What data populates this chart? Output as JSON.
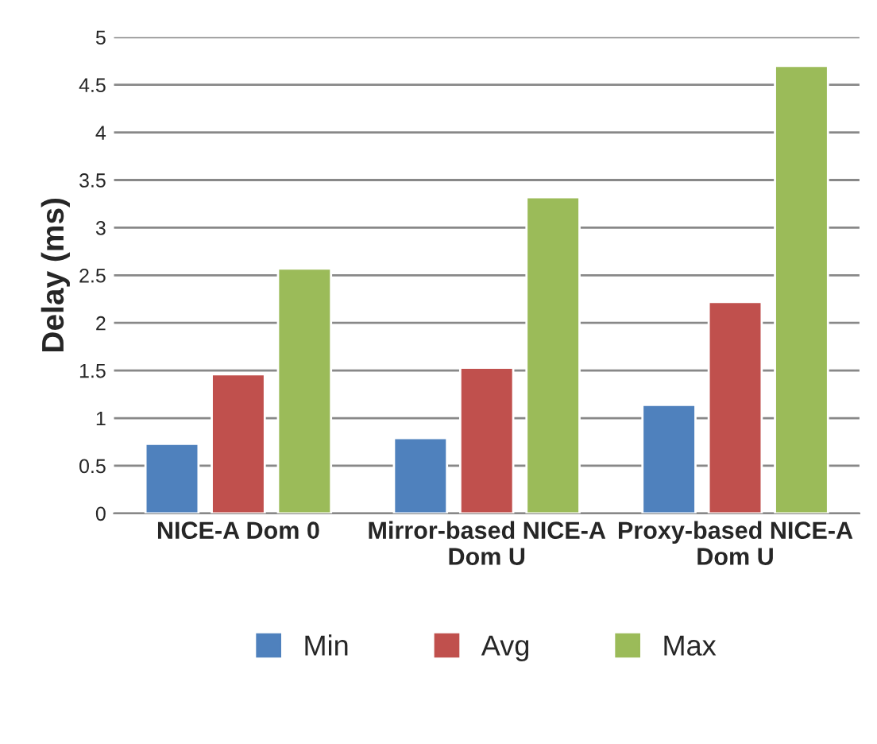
{
  "chart_data": {
    "type": "bar",
    "ylabel": "Delay (ms)",
    "categories": [
      "NICE-A Dom 0",
      "Mirror-based NICE-A\nDom U",
      "Proxy-based NICE-A\nDom U"
    ],
    "series": [
      {
        "name": "Min",
        "color": "#4f81bd",
        "values": [
          0.73,
          0.79,
          1.14
        ]
      },
      {
        "name": "Avg",
        "color": "#c0504d",
        "values": [
          1.46,
          1.53,
          2.22
        ]
      },
      {
        "name": "Max",
        "color": "#9bbb59",
        "values": [
          2.57,
          3.32,
          4.7
        ]
      }
    ],
    "ylim": [
      0,
      5
    ],
    "yticks": [
      0,
      0.5,
      1,
      1.5,
      2,
      2.5,
      3,
      3.5,
      4,
      4.5,
      5
    ],
    "grid": "y",
    "legend": "bottom"
  }
}
